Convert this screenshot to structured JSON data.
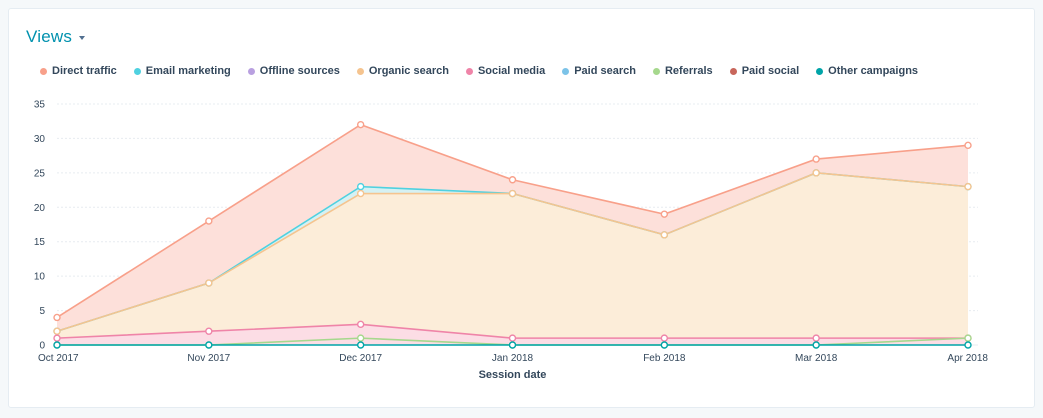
{
  "header": {
    "title": "Views"
  },
  "colors": {
    "direct_traffic": "#f8a08a",
    "direct_fill": "#fde0da",
    "organic_search": "#f5c48f",
    "organic_fill": "#fcedd9",
    "email_marketing": "#4fd1e0",
    "offline_sources": "#b9a0e0",
    "social_media": "#ef84a8",
    "paid_search": "#7cc3e8",
    "referrals": "#a6d88d",
    "paid_social": "#c8665b",
    "other_campaigns": "#00a4a8"
  },
  "legend": [
    {
      "label": "Direct traffic",
      "color": "#f8a08a"
    },
    {
      "label": "Email marketing",
      "color": "#4fd1e0"
    },
    {
      "label": "Offline sources",
      "color": "#b9a0e0"
    },
    {
      "label": "Organic search",
      "color": "#f5c48f"
    },
    {
      "label": "Social media",
      "color": "#ef84a8"
    },
    {
      "label": "Paid search",
      "color": "#7cc3e8"
    },
    {
      "label": "Referrals",
      "color": "#a6d88d"
    },
    {
      "label": "Paid social",
      "color": "#c8665b"
    },
    {
      "label": "Other campaigns",
      "color": "#00a4a8"
    }
  ],
  "chart_data": {
    "type": "area",
    "stacked": true,
    "categories": [
      "Oct 2017",
      "Nov 2017",
      "Dec 2017",
      "Jan 2018",
      "Feb 2018",
      "Mar 2018",
      "Apr 2018"
    ],
    "series": [
      {
        "name": "Other campaigns",
        "values": [
          0,
          0,
          0,
          0,
          0,
          0,
          0
        ]
      },
      {
        "name": "Paid social",
        "values": [
          0,
          0,
          0,
          0,
          0,
          0,
          0
        ]
      },
      {
        "name": "Referrals",
        "values": [
          0,
          0,
          1,
          0,
          0,
          0,
          1
        ]
      },
      {
        "name": "Paid search",
        "values": [
          0,
          0,
          0,
          0,
          0,
          0,
          0
        ]
      },
      {
        "name": "Social media",
        "values": [
          1,
          2,
          2,
          1,
          1,
          1,
          0
        ]
      },
      {
        "name": "Organic search",
        "values": [
          1,
          7,
          19,
          21,
          15,
          24,
          22
        ]
      },
      {
        "name": "Offline sources",
        "values": [
          0,
          0,
          0,
          0,
          0,
          0,
          0
        ]
      },
      {
        "name": "Email marketing",
        "values": [
          0,
          0,
          1,
          0,
          0,
          0,
          0
        ]
      },
      {
        "name": "Direct traffic",
        "values": [
          2,
          9,
          9,
          2,
          3,
          2,
          6
        ]
      }
    ],
    "stack_totals": {
      "Organic search": [
        2,
        9,
        22,
        22,
        16,
        25,
        23
      ],
      "Email marketing": [
        2,
        9,
        23,
        22,
        16,
        25,
        23
      ],
      "Direct traffic": [
        4,
        18,
        32,
        24,
        19,
        27,
        29
      ],
      "Social media": [
        1,
        2,
        3,
        1,
        1,
        1,
        1
      ],
      "Referrals": [
        0,
        0,
        1,
        0,
        0,
        0,
        1
      ]
    },
    "xlabel": "Session date",
    "ylabel": "",
    "ylim": [
      0,
      35
    ],
    "yticks": [
      0,
      5,
      10,
      15,
      20,
      25,
      30,
      35
    ],
    "grid": true,
    "legend_position": "top-left"
  }
}
